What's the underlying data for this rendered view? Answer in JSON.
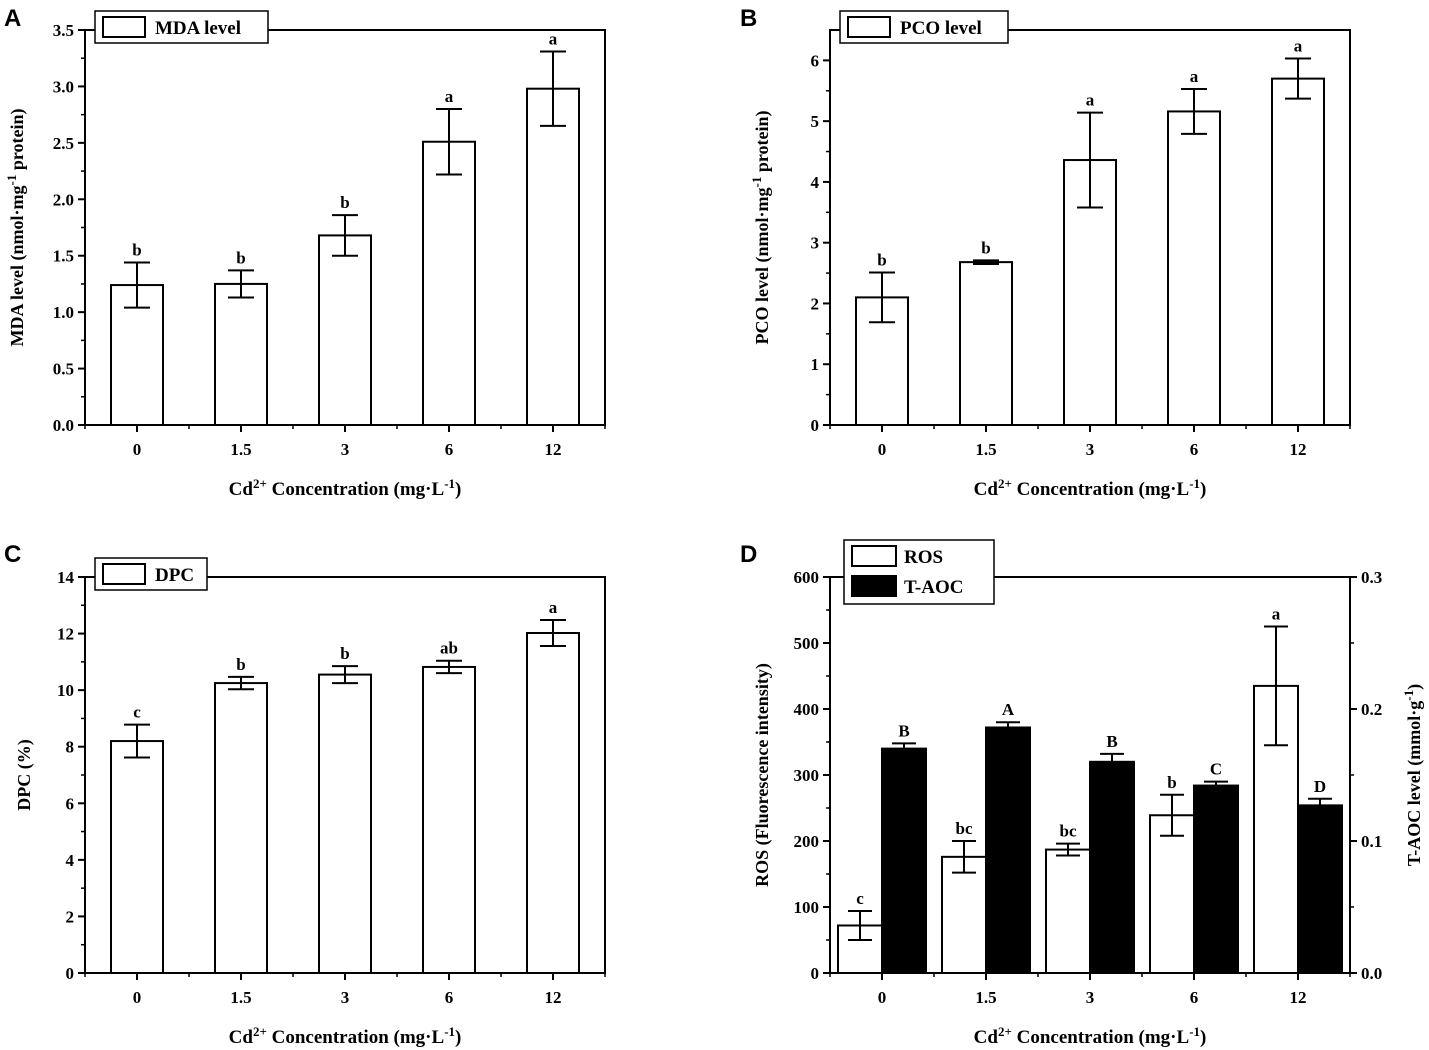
{
  "figure": {
    "x_axis_title_main": "Cd",
    "x_axis_title_sup": "2+",
    "x_axis_title_rest": " Concentration (mg·L",
    "x_axis_title_exp": "-1",
    "x_axis_title_end": ")"
  },
  "chart_data": [
    {
      "panel": "A",
      "type": "bar",
      "categories": [
        "0",
        "1.5",
        "3",
        "6",
        "12"
      ],
      "values": [
        1.24,
        1.25,
        1.68,
        2.51,
        2.98
      ],
      "errors": [
        0.2,
        0.12,
        0.18,
        0.29,
        0.33
      ],
      "sig_labels": [
        "b",
        "b",
        "b",
        "a",
        "a"
      ],
      "legend": "MDA level",
      "legend_position": "top-left",
      "ylabel_parts": [
        "MDA level (nmol·mg",
        "-1",
        " protein)"
      ],
      "ylim": [
        0,
        3.5
      ],
      "yticks": [
        "0.0",
        "0.5",
        "1.0",
        "1.5",
        "2.0",
        "2.5",
        "3.0",
        "3.5"
      ],
      "xlabel": "Cd2+ Concentration (mg·L-1)"
    },
    {
      "panel": "B",
      "type": "bar",
      "categories": [
        "0",
        "1.5",
        "3",
        "6",
        "12"
      ],
      "values": [
        2.1,
        2.68,
        4.36,
        5.16,
        5.7
      ],
      "errors": [
        0.41,
        0.03,
        0.78,
        0.37,
        0.33
      ],
      "sig_labels": [
        "b",
        "b",
        "a",
        "a",
        "a"
      ],
      "legend": "PCO level",
      "legend_position": "top-left",
      "ylabel_parts": [
        "PCO level (nmol·mg",
        "-1",
        " protein)"
      ],
      "ylim": [
        0,
        6.5
      ],
      "yticks": [
        "0",
        "1",
        "2",
        "3",
        "4",
        "5",
        "6"
      ],
      "xlabel": "Cd2+ Concentration (mg·L-1)"
    },
    {
      "panel": "C",
      "type": "bar",
      "categories": [
        "0",
        "1.5",
        "3",
        "6",
        "12"
      ],
      "values": [
        8.2,
        10.25,
        10.55,
        10.82,
        12.02
      ],
      "errors": [
        0.58,
        0.22,
        0.3,
        0.22,
        0.46
      ],
      "sig_labels": [
        "c",
        "b",
        "b",
        "ab",
        "a"
      ],
      "legend": "DPC",
      "legend_position": "top-left",
      "ylabel_parts": [
        "DPC (%)",
        "",
        ""
      ],
      "ylim": [
        0,
        14
      ],
      "yticks": [
        "0",
        "2",
        "4",
        "6",
        "8",
        "10",
        "12",
        "14"
      ],
      "xlabel": "Cd2+ Concentration (mg·L-1)"
    },
    {
      "panel": "D",
      "type": "bar",
      "categories": [
        "0",
        "1.5",
        "3",
        "6",
        "12"
      ],
      "series": [
        {
          "name": "ROS",
          "axis": "left",
          "fill": "#ffffff",
          "values": [
            72,
            176,
            187,
            239,
            435
          ],
          "errors": [
            22,
            24,
            9,
            31,
            90
          ],
          "sig_labels": [
            "c",
            "bc",
            "bc",
            "b",
            "a"
          ]
        },
        {
          "name": "T-AOC",
          "axis": "right",
          "fill": "#000000",
          "values": [
            0.17,
            0.186,
            0.16,
            0.142,
            0.127
          ],
          "errors": [
            0.004,
            0.004,
            0.006,
            0.003,
            0.005
          ],
          "sig_labels": [
            "B",
            "A",
            "B",
            "C",
            "D"
          ]
        }
      ],
      "legend_position": "top-left",
      "ylabel_parts": [
        "ROS (Fluorescence intensity)",
        "",
        ""
      ],
      "ylim": [
        0,
        600
      ],
      "yticks": [
        "0",
        "100",
        "200",
        "300",
        "400",
        "500",
        "600"
      ],
      "y2label_parts": [
        "T-AOC level (mmol·g",
        "-1",
        ")"
      ],
      "y2lim": [
        0,
        0.3
      ],
      "y2ticks": [
        "0.0",
        "0.1",
        "0.2",
        "0.3"
      ],
      "xlabel": "Cd2+ Concentration (mg·L-1)"
    }
  ]
}
